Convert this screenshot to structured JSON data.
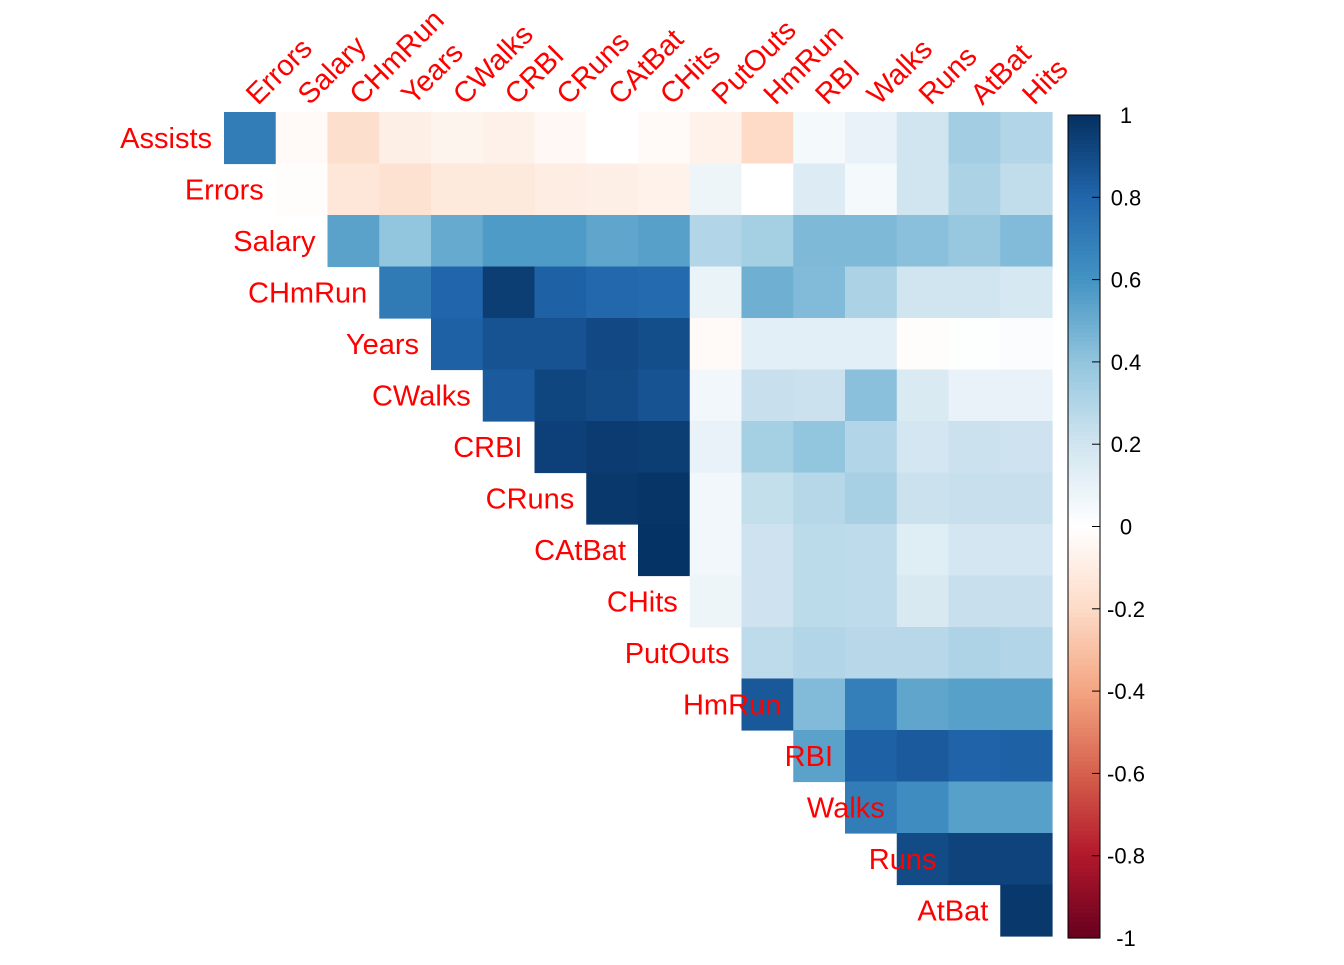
{
  "chart_data": {
    "type": "heatmap",
    "shape": "upper-triangular correlation matrix (corrplot)",
    "row_labels": [
      "Assists",
      "Errors",
      "Salary",
      "CHmRun",
      "Years",
      "CWalks",
      "CRBI",
      "CRuns",
      "CAtBat",
      "CHits",
      "PutOuts",
      "HmRun",
      "RBI",
      "Walks",
      "Runs",
      "AtBat"
    ],
    "col_labels": [
      "Errors",
      "Salary",
      "CHmRun",
      "Years",
      "CWalks",
      "CRBI",
      "CRuns",
      "CAtBat",
      "CHits",
      "PutOuts",
      "HmRun",
      "RBI",
      "Walks",
      "Runs",
      "AtBat",
      "Hits"
    ],
    "values": [
      [
        0.7,
        -0.03,
        -0.18,
        -0.09,
        -0.06,
        -0.08,
        -0.04,
        0.0,
        -0.03,
        -0.07,
        -0.2,
        0.05,
        0.1,
        0.2,
        0.35,
        0.3
      ],
      [
        null,
        -0.01,
        -0.14,
        -0.16,
        -0.12,
        -0.12,
        -0.1,
        -0.09,
        -0.07,
        0.08,
        0.0,
        0.15,
        0.05,
        0.2,
        0.32,
        0.25
      ],
      [
        null,
        null,
        0.54,
        0.4,
        0.51,
        0.57,
        0.57,
        0.53,
        0.55,
        0.3,
        0.34,
        0.45,
        0.45,
        0.42,
        0.38,
        0.44
      ],
      [
        null,
        null,
        null,
        0.71,
        0.8,
        0.95,
        0.82,
        0.79,
        0.78,
        0.09,
        0.49,
        0.44,
        0.32,
        0.2,
        0.2,
        0.18
      ],
      [
        null,
        null,
        null,
        null,
        0.82,
        0.87,
        0.87,
        0.91,
        0.89,
        -0.03,
        0.12,
        0.12,
        0.12,
        -0.01,
        0.01,
        0.02
      ],
      [
        null,
        null,
        null,
        null,
        null,
        0.84,
        0.92,
        0.9,
        0.87,
        0.06,
        0.23,
        0.22,
        0.42,
        0.16,
        0.1,
        0.1
      ],
      [
        null,
        null,
        null,
        null,
        null,
        null,
        0.94,
        0.96,
        0.95,
        0.1,
        0.34,
        0.4,
        0.3,
        0.19,
        0.22,
        0.21
      ],
      [
        null,
        null,
        null,
        null,
        null,
        null,
        null,
        0.97,
        0.98,
        0.06,
        0.24,
        0.29,
        0.33,
        0.22,
        0.23,
        0.23
      ],
      [
        null,
        null,
        null,
        null,
        null,
        null,
        null,
        null,
        0.99,
        0.06,
        0.21,
        0.27,
        0.26,
        0.14,
        0.19,
        0.19
      ],
      [
        null,
        null,
        null,
        null,
        null,
        null,
        null,
        null,
        null,
        0.08,
        0.21,
        0.27,
        0.26,
        0.17,
        0.23,
        0.23
      ],
      [
        null,
        null,
        null,
        null,
        null,
        null,
        null,
        null,
        null,
        null,
        0.26,
        0.3,
        0.28,
        0.28,
        0.31,
        0.3
      ],
      [
        null,
        null,
        null,
        null,
        null,
        null,
        null,
        null,
        null,
        null,
        0.85,
        0.44,
        0.69,
        0.53,
        0.55,
        0.55
      ],
      [
        null,
        null,
        null,
        null,
        null,
        null,
        null,
        null,
        null,
        null,
        null,
        0.54,
        0.82,
        0.84,
        0.81,
        0.82
      ],
      [
        null,
        null,
        null,
        null,
        null,
        null,
        null,
        null,
        null,
        null,
        null,
        null,
        0.7,
        0.63,
        0.55,
        0.55
      ],
      [
        null,
        null,
        null,
        null,
        null,
        null,
        null,
        null,
        null,
        null,
        null,
        null,
        null,
        0.9,
        0.93,
        0.93
      ],
      [
        null,
        null,
        null,
        null,
        null,
        null,
        null,
        null,
        null,
        null,
        null,
        null,
        null,
        null,
        null,
        0.97
      ]
    ],
    "colorbar": {
      "range": [
        -1,
        1
      ],
      "tick_labels": [
        "1",
        "0.8",
        "0.6",
        "0.4",
        "0.2",
        "0",
        "-0.2",
        "-0.4",
        "-0.6",
        "-0.8",
        "-1"
      ],
      "palette": [
        "#67001F",
        "#B2182B",
        "#D6604D",
        "#F4A582",
        "#FDDBC7",
        "#FFFFFF",
        "#D1E5F0",
        "#92C5DE",
        "#4393C3",
        "#2166AC",
        "#053061"
      ]
    },
    "label_color": "#FF0000"
  }
}
